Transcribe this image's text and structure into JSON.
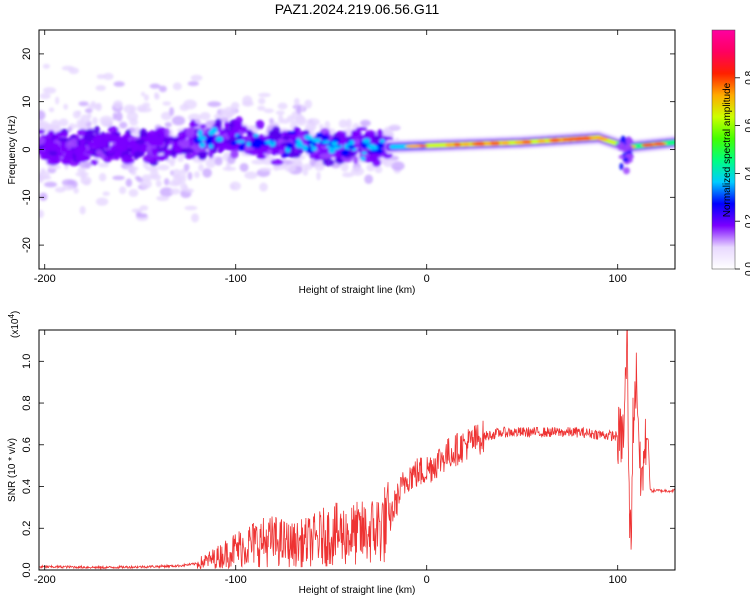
{
  "chart_data": [
    {
      "type": "heatmap",
      "title": "PAZ1.2024.219.06.56.G11",
      "xlabel": "Height of straight line (km)",
      "ylabel": "Frequency (Hz)",
      "xlim": [
        -203,
        130
      ],
      "ylim": [
        -25,
        25
      ],
      "xticks": [
        -200,
        -100,
        0,
        100
      ],
      "yticks": [
        -20,
        -10,
        0,
        10,
        20
      ],
      "colorbar": {
        "label": "Normalized spectral amplitude",
        "range": [
          0,
          1
        ],
        "ticks": [
          0.0,
          0.2,
          0.4,
          0.6,
          0.8
        ],
        "ticklabels": [
          "0.0",
          "0.2",
          "0.4",
          "0.6",
          "0.8"
        ],
        "colormap": [
          "#ffffff",
          "#e8d8ff",
          "#7a00ff",
          "#0000ff",
          "#00ccff",
          "#00ff80",
          "#44ff00",
          "#ccff00",
          "#ffaa00",
          "#ff2000",
          "#ff0060",
          "#ff00a0"
        ]
      },
      "ridge": [
        {
          "x": -200,
          "y": 0.5
        },
        {
          "x": -150,
          "y": 0.8
        },
        {
          "x": -100,
          "y": 2.5
        },
        {
          "x": -80,
          "y": 1.5
        },
        {
          "x": -40,
          "y": 0.5
        },
        {
          "x": -22,
          "y": 0.5
        },
        {
          "x": 0,
          "y": 0.8
        },
        {
          "x": 50,
          "y": 1.5
        },
        {
          "x": 90,
          "y": 2.5
        },
        {
          "x": 105,
          "y": 0.5
        },
        {
          "x": 130,
          "y": 1.5
        }
      ]
    },
    {
      "type": "line",
      "xlabel": "Height of straight line (km)",
      "ylabel": "SNR (10 * v/v)",
      "scale_label": "(x10",
      "scale_exp": "4",
      "scale_close": ")",
      "xlim": [
        -203,
        130
      ],
      "ylim": [
        0,
        1.15
      ],
      "xticks": [
        -200,
        -100,
        0,
        100
      ],
      "yticks": [
        0.0,
        0.2,
        0.4,
        0.6,
        0.8,
        1.0
      ],
      "yticklabels": [
        "0.0",
        "0.2",
        "0.4",
        "0.6",
        "0.8",
        "1.0"
      ],
      "series": [
        {
          "color": "#ee3333",
          "x": [
            -203,
            -190,
            -170,
            -150,
            -130,
            -120,
            -110,
            -100,
            -90,
            -80,
            -70,
            -60,
            -50,
            -40,
            -30,
            -20,
            -15,
            -10,
            0,
            10,
            20,
            30,
            40,
            50,
            60,
            70,
            80,
            90,
            100,
            103,
            105,
            106,
            107,
            108,
            110,
            112,
            115,
            116,
            117,
            120,
            125,
            130
          ],
          "y": [
            0.015,
            0.015,
            0.012,
            0.015,
            0.02,
            0.03,
            0.06,
            0.1,
            0.13,
            0.14,
            0.12,
            0.14,
            0.17,
            0.17,
            0.18,
            0.23,
            0.35,
            0.45,
            0.48,
            0.55,
            0.6,
            0.64,
            0.66,
            0.66,
            0.66,
            0.66,
            0.66,
            0.65,
            0.64,
            0.64,
            1.1,
            0.3,
            0.15,
            0.7,
            0.95,
            0.4,
            0.63,
            0.63,
            0.38,
            0.38,
            0.38,
            0.38
          ]
        }
      ]
    }
  ]
}
